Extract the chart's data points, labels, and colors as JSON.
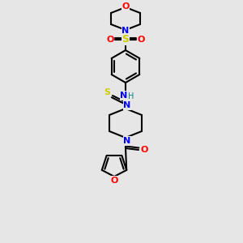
{
  "bg_color": "#e6e6e6",
  "atom_colors": {
    "C": "#000000",
    "N": "#0000ff",
    "O": "#ff0000",
    "S_sulfonyl": "#cccc00",
    "S_thio": "#cccc00",
    "H": "#008080"
  },
  "bond_color": "#000000",
  "bond_width": 1.5,
  "figsize": [
    3.0,
    3.0
  ],
  "dpi": 100
}
